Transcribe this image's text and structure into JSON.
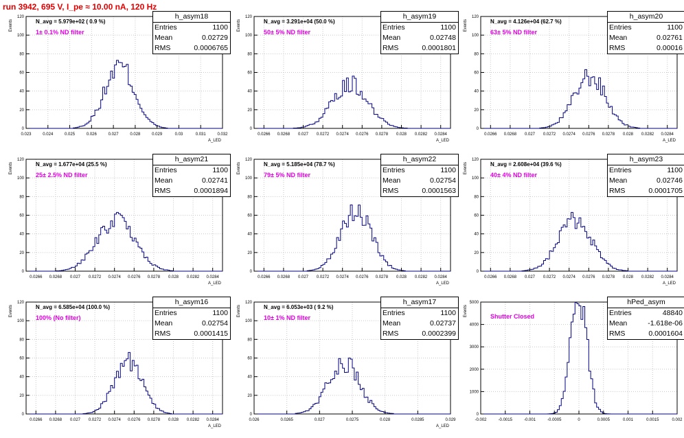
{
  "run_title": "run 3942,   695 V, I_pe ≈ 10.00 nA, 120 Hz",
  "colors": {
    "title": "#e00000",
    "histogram_line": "#000080",
    "filter_label": "#e000e0",
    "grid": "#c8c8c8"
  },
  "chart_data": [
    {
      "type": "histogram",
      "name": "h_asym18",
      "navg": "N_avg = 5.979e+02 ( 0.9 %)",
      "filter_label": "1± 0.1% ND filter",
      "stats": {
        "entries": "1100",
        "mean": "0.02729",
        "rms": "0.0006765"
      },
      "ylabel": "Events",
      "xlabel": "A_LED",
      "xlim": [
        0.023,
        0.032
      ],
      "ylim": [
        0,
        120
      ],
      "xticks": [
        "0.023",
        "0.024",
        "0.025",
        "0.026",
        "0.027",
        "0.028",
        "0.029",
        "0.03",
        "0.031",
        "0.032"
      ],
      "yticks": [
        "0",
        "20",
        "40",
        "60",
        "80",
        "100",
        "120"
      ],
      "mean": 0.02729,
      "sigma": 0.0006765,
      "peak": 73
    },
    {
      "type": "histogram",
      "name": "h_asym19",
      "navg": "N_avg = 3.291e+04 (50.0 %)",
      "filter_label": "50± 5% ND filter",
      "stats": {
        "entries": "1100",
        "mean": "0.02748",
        "rms": "0.0001801"
      },
      "ylabel": "Events",
      "xlabel": "A_LED",
      "xlim": [
        0.0265,
        0.0285
      ],
      "ylim": [
        0,
        120
      ],
      "xticks": [
        "0.0266",
        "0.0268",
        "0.027",
        "0.0272",
        "0.0274",
        "0.0276",
        "0.0278",
        "0.028",
        "0.0282",
        "0.0284"
      ],
      "yticks": [
        "0",
        "20",
        "40",
        "60",
        "80",
        "100",
        "120"
      ],
      "mean": 0.02748,
      "sigma": 0.0001801,
      "peak": 56
    },
    {
      "type": "histogram",
      "name": "h_asym20",
      "navg": "N_avg = 4.126e+04 (62.7 %)",
      "filter_label": "63± 5% ND filter",
      "stats": {
        "entries": "1100",
        "mean": "0.02761",
        "rms": "0.00016"
      },
      "ylabel": "Events",
      "xlabel": "A_LED",
      "xlim": [
        0.0265,
        0.0285
      ],
      "ylim": [
        0,
        120
      ],
      "xticks": [
        "0.0266",
        "0.0268",
        "0.027",
        "0.0272",
        "0.0274",
        "0.0276",
        "0.0278",
        "0.028",
        "0.0282",
        "0.0284"
      ],
      "yticks": [
        "0",
        "20",
        "40",
        "60",
        "80",
        "100",
        "120"
      ],
      "mean": 0.02761,
      "sigma": 0.00016,
      "peak": 63
    },
    {
      "type": "histogram",
      "name": "h_asym21",
      "navg": "N_avg = 1.677e+04 (25.5 %)",
      "filter_label": "25± 2.5% ND filter",
      "stats": {
        "entries": "1100",
        "mean": "0.02741",
        "rms": "0.0001894"
      },
      "ylabel": "Events",
      "xlabel": "A_LED",
      "xlim": [
        0.0265,
        0.0285
      ],
      "ylim": [
        0,
        120
      ],
      "xticks": [
        "0.0266",
        "0.0268",
        "0.027",
        "0.0272",
        "0.0274",
        "0.0276",
        "0.0278",
        "0.028",
        "0.0282",
        "0.0284"
      ],
      "yticks": [
        "0",
        "20",
        "40",
        "60",
        "80",
        "100",
        "120"
      ],
      "mean": 0.02741,
      "sigma": 0.0001894,
      "peak": 63
    },
    {
      "type": "histogram",
      "name": "h_asym22",
      "navg": "N_avg = 5.185e+04 (78.7 %)",
      "filter_label": "79± 5% ND filter",
      "stats": {
        "entries": "1100",
        "mean": "0.02754",
        "rms": "0.0001563"
      },
      "ylabel": "Events",
      "xlabel": "A_LED",
      "xlim": [
        0.0265,
        0.0285
      ],
      "ylim": [
        0,
        120
      ],
      "xticks": [
        "0.0266",
        "0.0268",
        "0.027",
        "0.0272",
        "0.0274",
        "0.0276",
        "0.0278",
        "0.028",
        "0.0282",
        "0.0284"
      ],
      "yticks": [
        "0",
        "20",
        "40",
        "60",
        "80",
        "100",
        "120"
      ],
      "mean": 0.02754,
      "sigma": 0.0001563,
      "peak": 71
    },
    {
      "type": "histogram",
      "name": "h_asym23",
      "navg": "N_avg = 2.608e+04 (39.6 %)",
      "filter_label": "40± 4% ND filter",
      "stats": {
        "entries": "1100",
        "mean": "0.02746",
        "rms": "0.0001705"
      },
      "ylabel": "Events",
      "xlabel": "A_LED",
      "xlim": [
        0.0265,
        0.0285
      ],
      "ylim": [
        0,
        120
      ],
      "xticks": [
        "0.0266",
        "0.0268",
        "0.027",
        "0.0272",
        "0.0274",
        "0.0276",
        "0.0278",
        "0.028",
        "0.0282",
        "0.0284"
      ],
      "yticks": [
        "0",
        "20",
        "40",
        "60",
        "80",
        "100",
        "120"
      ],
      "mean": 0.02746,
      "sigma": 0.0001705,
      "peak": 63
    },
    {
      "type": "histogram",
      "name": "h_asym16",
      "navg": "N_avg = 6.585e+04 (100.0 %)",
      "filter_label": "100% (No filter)",
      "stats": {
        "entries": "1100",
        "mean": "0.02754",
        "rms": "0.0001415"
      },
      "ylabel": "Events",
      "xlabel": "A_LED",
      "xlim": [
        0.0265,
        0.0285
      ],
      "ylim": [
        0,
        120
      ],
      "xticks": [
        "0.0266",
        "0.0268",
        "0.027",
        "0.0272",
        "0.0274",
        "0.0276",
        "0.0278",
        "0.028",
        "0.0282",
        "0.0284"
      ],
      "yticks": [
        "0",
        "20",
        "40",
        "60",
        "80",
        "100",
        "120"
      ],
      "mean": 0.02754,
      "sigma": 0.0001415,
      "peak": 66
    },
    {
      "type": "histogram",
      "name": "h_asym17",
      "navg": "N_avg = 6.053e+03 ( 9.2 %)",
      "filter_label": "10± 1% ND filter",
      "stats": {
        "entries": "1100",
        "mean": "0.02737",
        "rms": "0.0002399"
      },
      "ylabel": "Events",
      "xlabel": "A_LED",
      "xlim": [
        0.026,
        0.029
      ],
      "ylim": [
        0,
        120
      ],
      "xticks": [
        "0.026",
        "0.0265",
        "0.027",
        "0.0275",
        "0.028",
        "0.0285",
        "0.029"
      ],
      "yticks": [
        "0",
        "20",
        "40",
        "60",
        "80",
        "100",
        "120"
      ],
      "mean": 0.02737,
      "sigma": 0.0002399,
      "peak": 60
    },
    {
      "type": "histogram",
      "name": "hPed_asym",
      "navg": "",
      "filter_label": "Shutter Closed",
      "stats": {
        "entries": "48840",
        "mean": "-1.618e-06",
        "rms": "0.0001604"
      },
      "ylabel": "Events",
      "xlabel": "",
      "xlim": [
        -0.002,
        0.002
      ],
      "ylim": [
        0,
        5000
      ],
      "xticks": [
        "-0.002",
        "-0.0015",
        "-0.001",
        "-0.0005",
        "0",
        "0.0005",
        "0.001",
        "0.0015",
        "0.002"
      ],
      "yticks": [
        "0",
        "1000",
        "2000",
        "3000",
        "4000",
        "5000"
      ],
      "mean": -1.618e-06,
      "sigma": 0.0001604,
      "peak": 4980
    }
  ]
}
